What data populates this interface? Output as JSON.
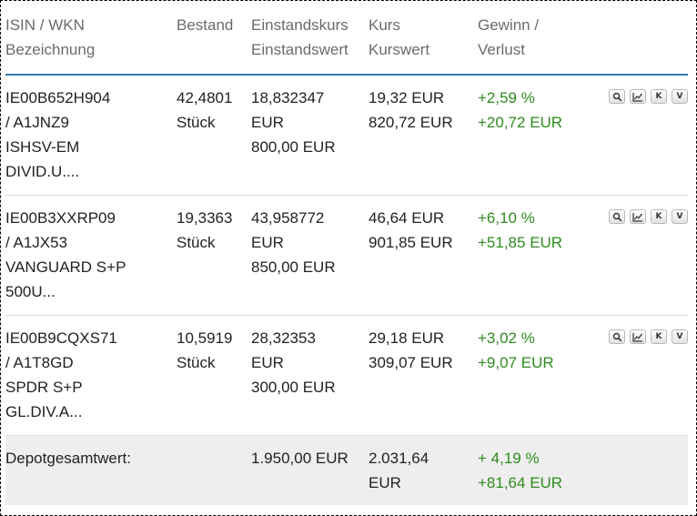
{
  "header": {
    "col_name": [
      "ISIN / WKN",
      "Bezeichnung"
    ],
    "col_qty": [
      "Bestand"
    ],
    "col_cost": [
      "Einstandskurs",
      "Einstandswert"
    ],
    "col_price": [
      "Kurs",
      "Kurswert"
    ],
    "col_gain": [
      "Gewinn /",
      "Verlust"
    ]
  },
  "rows": [
    {
      "name_lines": [
        "IE00B652H904",
        "/ A1JNZ9",
        "ISHSV-EM",
        "DIVID.U...."
      ],
      "qty_lines": [
        "42,4801",
        "Stück"
      ],
      "cost_lines": [
        "18,832347",
        "EUR",
        "800,00 EUR"
      ],
      "price_lines": [
        "19,32 EUR",
        "820,72 EUR"
      ],
      "gain_lines": [
        "+2,59 %",
        "+20,72 EUR"
      ],
      "actions": {
        "search_icon": "magnifier-icon",
        "chart_icon": "chart-icon",
        "buy_label": "K",
        "sell_label": "V"
      }
    },
    {
      "name_lines": [
        "IE00B3XXRP09",
        "/ A1JX53",
        "VANGUARD S+P",
        "500U..."
      ],
      "qty_lines": [
        "19,3363",
        "Stück"
      ],
      "cost_lines": [
        "43,958772",
        "EUR",
        "850,00 EUR"
      ],
      "price_lines": [
        "46,64 EUR",
        "901,85 EUR"
      ],
      "gain_lines": [
        "+6,10 %",
        "+51,85 EUR"
      ],
      "actions": {
        "search_icon": "magnifier-icon",
        "chart_icon": "chart-icon",
        "buy_label": "K",
        "sell_label": "V"
      }
    },
    {
      "name_lines": [
        "IE00B9CQXS71",
        "/ A1T8GD",
        "SPDR S+P",
        "GL.DIV.A..."
      ],
      "qty_lines": [
        "10,5919",
        "Stück"
      ],
      "cost_lines": [
        "28,32353",
        "EUR",
        "300,00 EUR"
      ],
      "price_lines": [
        "29,18 EUR",
        "309,07 EUR"
      ],
      "gain_lines": [
        "+3,02 %",
        "+9,07 EUR"
      ],
      "actions": {
        "search_icon": "magnifier-icon",
        "chart_icon": "chart-icon",
        "buy_label": "K",
        "sell_label": "V"
      }
    }
  ],
  "total": {
    "label": "Depotgesamtwert:",
    "cost": "1.950,00 EUR",
    "price_lines": [
      "2.031,64",
      "EUR"
    ],
    "gain_lines": [
      "+ 4,19 %",
      "+81,64 EUR"
    ]
  },
  "colors": {
    "gain_positive": "#2e8b1e",
    "header_rule": "#2f7ab5",
    "header_text": "#6b6b6b",
    "total_background": "#eeeeee"
  }
}
